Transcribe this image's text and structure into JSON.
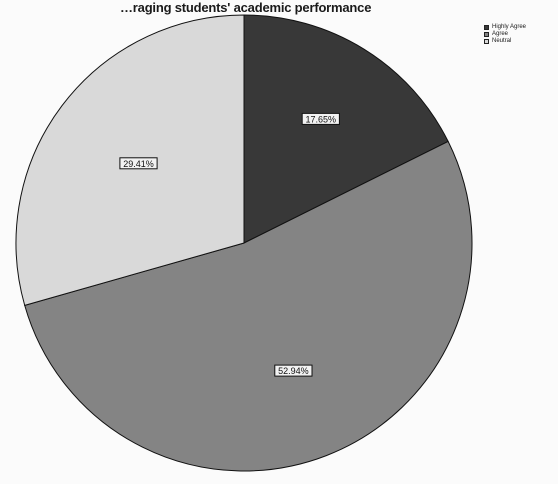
{
  "chart_data": {
    "type": "pie",
    "title": "…ragin‎g students' academic performance",
    "categories": [
      "Highly Agree",
      "Agree",
      "Neutral"
    ],
    "values": [
      17.65,
      52.94,
      29.41
    ],
    "data_labels": [
      "17.65%",
      "52.94%",
      "29.41%"
    ],
    "colors": [
      "#383838",
      "#848484",
      "#d9d9d9"
    ],
    "start_angle_deg": 0,
    "direction": "clockwise",
    "legend_position": "top-right"
  }
}
